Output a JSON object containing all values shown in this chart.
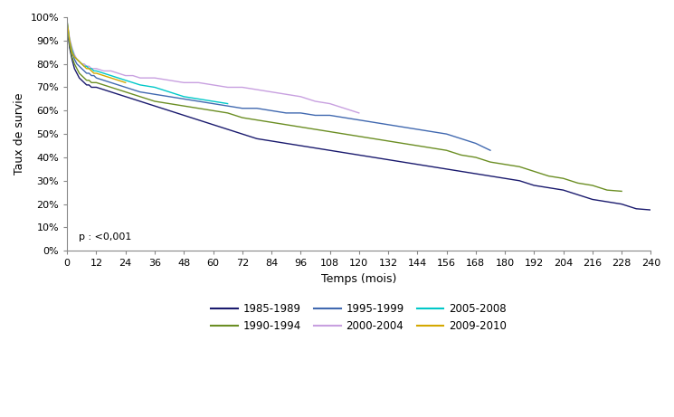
{
  "title": "",
  "xlabel": "Temps (mois)",
  "ylabel": "Taux de survie",
  "xlim": [
    0,
    240
  ],
  "ylim": [
    0,
    1.0
  ],
  "xticks": [
    0,
    12,
    24,
    36,
    48,
    60,
    72,
    84,
    96,
    108,
    120,
    132,
    144,
    156,
    168,
    180,
    192,
    204,
    216,
    228,
    240
  ],
  "yticks": [
    0.0,
    0.1,
    0.2,
    0.3,
    0.4,
    0.5,
    0.6,
    0.7,
    0.8,
    0.9,
    1.0
  ],
  "annotation": "p : <0,001",
  "series": [
    {
      "label": "1985-1989",
      "color": "#1a1a6e",
      "x": [
        0,
        1,
        2,
        3,
        4,
        5,
        6,
        7,
        8,
        9,
        10,
        11,
        12,
        15,
        18,
        21,
        24,
        27,
        30,
        33,
        36,
        39,
        42,
        45,
        48,
        51,
        54,
        57,
        60,
        66,
        72,
        78,
        84,
        90,
        96,
        102,
        108,
        114,
        120,
        126,
        132,
        138,
        144,
        150,
        156,
        162,
        168,
        174,
        180,
        186,
        192,
        198,
        204,
        210,
        216,
        222,
        228,
        234,
        240
      ],
      "y": [
        0.96,
        0.87,
        0.82,
        0.78,
        0.76,
        0.74,
        0.73,
        0.72,
        0.71,
        0.71,
        0.7,
        0.7,
        0.7,
        0.69,
        0.68,
        0.67,
        0.66,
        0.65,
        0.64,
        0.63,
        0.62,
        0.61,
        0.6,
        0.59,
        0.58,
        0.57,
        0.56,
        0.55,
        0.54,
        0.52,
        0.5,
        0.48,
        0.47,
        0.46,
        0.45,
        0.44,
        0.43,
        0.42,
        0.41,
        0.4,
        0.39,
        0.38,
        0.37,
        0.36,
        0.35,
        0.34,
        0.33,
        0.32,
        0.31,
        0.3,
        0.28,
        0.27,
        0.26,
        0.24,
        0.22,
        0.21,
        0.2,
        0.18,
        0.175
      ]
    },
    {
      "label": "1990-1994",
      "color": "#6b8e23",
      "x": [
        0,
        1,
        2,
        3,
        4,
        5,
        6,
        7,
        8,
        9,
        10,
        11,
        12,
        15,
        18,
        21,
        24,
        27,
        30,
        33,
        36,
        42,
        48,
        54,
        60,
        66,
        72,
        78,
        84,
        90,
        96,
        102,
        108,
        114,
        120,
        126,
        132,
        138,
        144,
        150,
        156,
        162,
        168,
        174,
        180,
        186,
        192,
        198,
        204,
        210,
        216,
        222,
        228
      ],
      "y": [
        0.97,
        0.88,
        0.83,
        0.8,
        0.78,
        0.76,
        0.75,
        0.74,
        0.73,
        0.73,
        0.72,
        0.72,
        0.72,
        0.71,
        0.7,
        0.69,
        0.68,
        0.67,
        0.66,
        0.65,
        0.64,
        0.63,
        0.62,
        0.61,
        0.6,
        0.59,
        0.57,
        0.56,
        0.55,
        0.54,
        0.53,
        0.52,
        0.51,
        0.5,
        0.49,
        0.48,
        0.47,
        0.46,
        0.45,
        0.44,
        0.43,
        0.41,
        0.4,
        0.38,
        0.37,
        0.36,
        0.34,
        0.32,
        0.31,
        0.29,
        0.28,
        0.26,
        0.255
      ]
    },
    {
      "label": "1995-1999",
      "color": "#4169b0",
      "x": [
        0,
        1,
        2,
        3,
        4,
        5,
        6,
        7,
        8,
        9,
        10,
        11,
        12,
        15,
        18,
        21,
        24,
        27,
        30,
        36,
        42,
        48,
        54,
        60,
        66,
        72,
        78,
        84,
        90,
        96,
        102,
        108,
        114,
        120,
        126,
        132,
        138,
        144,
        150,
        156,
        162,
        168,
        174
      ],
      "y": [
        0.97,
        0.89,
        0.85,
        0.82,
        0.8,
        0.79,
        0.78,
        0.77,
        0.76,
        0.76,
        0.75,
        0.75,
        0.74,
        0.73,
        0.72,
        0.71,
        0.7,
        0.69,
        0.68,
        0.67,
        0.66,
        0.65,
        0.64,
        0.63,
        0.62,
        0.61,
        0.61,
        0.6,
        0.59,
        0.59,
        0.58,
        0.58,
        0.57,
        0.56,
        0.55,
        0.54,
        0.53,
        0.52,
        0.51,
        0.5,
        0.48,
        0.46,
        0.43
      ]
    },
    {
      "label": "2000-2004",
      "color": "#c8a0e0",
      "x": [
        0,
        1,
        2,
        3,
        4,
        5,
        6,
        7,
        8,
        9,
        10,
        11,
        12,
        15,
        18,
        21,
        24,
        27,
        30,
        36,
        42,
        48,
        54,
        60,
        66,
        72,
        78,
        84,
        90,
        96,
        102,
        108,
        114,
        120
      ],
      "y": [
        0.98,
        0.91,
        0.87,
        0.84,
        0.82,
        0.81,
        0.8,
        0.8,
        0.79,
        0.79,
        0.78,
        0.78,
        0.78,
        0.77,
        0.77,
        0.76,
        0.75,
        0.75,
        0.74,
        0.74,
        0.73,
        0.72,
        0.72,
        0.71,
        0.7,
        0.7,
        0.69,
        0.68,
        0.67,
        0.66,
        0.64,
        0.63,
        0.61,
        0.59
      ]
    },
    {
      "label": "2005-2008",
      "color": "#00c8c8",
      "x": [
        0,
        1,
        2,
        3,
        4,
        5,
        6,
        7,
        8,
        9,
        10,
        11,
        12,
        15,
        18,
        21,
        24,
        30,
        36,
        42,
        48,
        54,
        60,
        66
      ],
      "y": [
        0.98,
        0.9,
        0.86,
        0.83,
        0.82,
        0.81,
        0.8,
        0.79,
        0.79,
        0.78,
        0.78,
        0.77,
        0.77,
        0.76,
        0.75,
        0.74,
        0.73,
        0.71,
        0.7,
        0.68,
        0.66,
        0.65,
        0.64,
        0.63
      ]
    },
    {
      "label": "2009-2010",
      "color": "#d4a800",
      "x": [
        0,
        1,
        2,
        3,
        4,
        5,
        6,
        7,
        8,
        9,
        10,
        11,
        12,
        15,
        18,
        21,
        24
      ],
      "y": [
        0.98,
        0.9,
        0.85,
        0.83,
        0.82,
        0.81,
        0.8,
        0.79,
        0.78,
        0.78,
        0.77,
        0.76,
        0.76,
        0.75,
        0.74,
        0.73,
        0.72
      ]
    }
  ],
  "background_color": "#ffffff"
}
